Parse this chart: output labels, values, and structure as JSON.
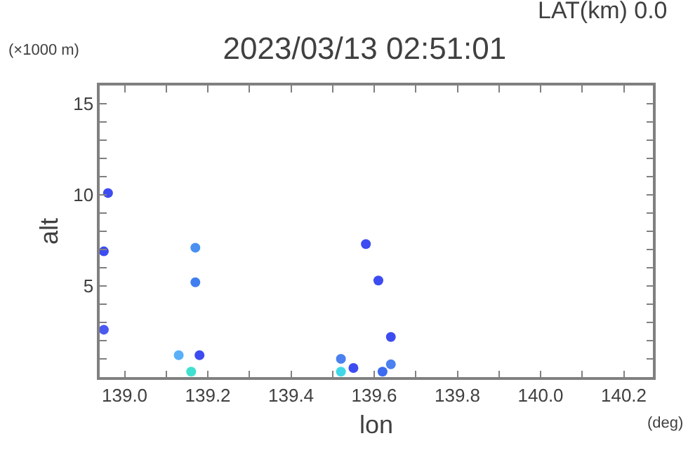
{
  "chart_data": {
    "type": "scatter",
    "title": "2023/03/13 02:51:01",
    "subtitle": "LAT(km) 0.0",
    "xlabel": "lon",
    "ylabel": "alt",
    "annotations": [
      "(×1000 m)",
      "(deg)"
    ],
    "x": [
      138.96,
      138.95,
      138.95,
      139.17,
      139.17,
      139.13,
      139.18,
      139.16,
      139.58,
      139.61,
      139.64,
      139.52,
      139.55,
      139.64,
      139.62,
      139.52
    ],
    "values": [
      10.1,
      6.9,
      2.6,
      7.1,
      5.2,
      1.2,
      1.2,
      0.3,
      7.3,
      5.3,
      2.2,
      1.0,
      0.5,
      0.7,
      0.3,
      0.3
    ],
    "colors": [
      "#3d4cf0",
      "#3d4cf0",
      "#4a5af0",
      "#4a90f0",
      "#3f7ef0",
      "#5ab0f8",
      "#3d4cf0",
      "#40e0d0",
      "#3d4cf0",
      "#3d4cf0",
      "#3d4cf0",
      "#4a80f0",
      "#3d4cf0",
      "#4a80f0",
      "#3d6cf0",
      "#40d8e8"
    ],
    "marker": "circle",
    "xlim": [
      138.94,
      140.27
    ],
    "xticks": [
      {
        "value": 139.0,
        "label": "139.0"
      },
      {
        "value": 139.1,
        "label": null
      },
      {
        "value": 139.2,
        "label": "139.2"
      },
      {
        "value": 139.3,
        "label": null
      },
      {
        "value": 139.4,
        "label": "139.4"
      },
      {
        "value": 139.5,
        "label": null
      },
      {
        "value": 139.6,
        "label": "139.6"
      },
      {
        "value": 139.7,
        "label": null
      },
      {
        "value": 139.8,
        "label": "139.8"
      },
      {
        "value": 139.9,
        "label": null
      },
      {
        "value": 140.0,
        "label": "140.0"
      },
      {
        "value": 140.1,
        "label": null
      },
      {
        "value": 140.2,
        "label": "140.2"
      }
    ],
    "ylim": [
      0,
      16
    ],
    "yticks": [
      {
        "value": 1,
        "label": null
      },
      {
        "value": 2,
        "label": null
      },
      {
        "value": 3,
        "label": null
      },
      {
        "value": 4,
        "label": null
      },
      5,
      {
        "value": 6,
        "label": null
      },
      {
        "value": 7,
        "label": null
      },
      {
        "value": 8,
        "label": null
      },
      {
        "value": 9,
        "label": null
      },
      10,
      {
        "value": 11,
        "label": null
      },
      {
        "value": 12,
        "label": null
      },
      {
        "value": 13,
        "label": null
      },
      {
        "value": 14,
        "label": null
      },
      15
    ],
    "grid": false
  }
}
